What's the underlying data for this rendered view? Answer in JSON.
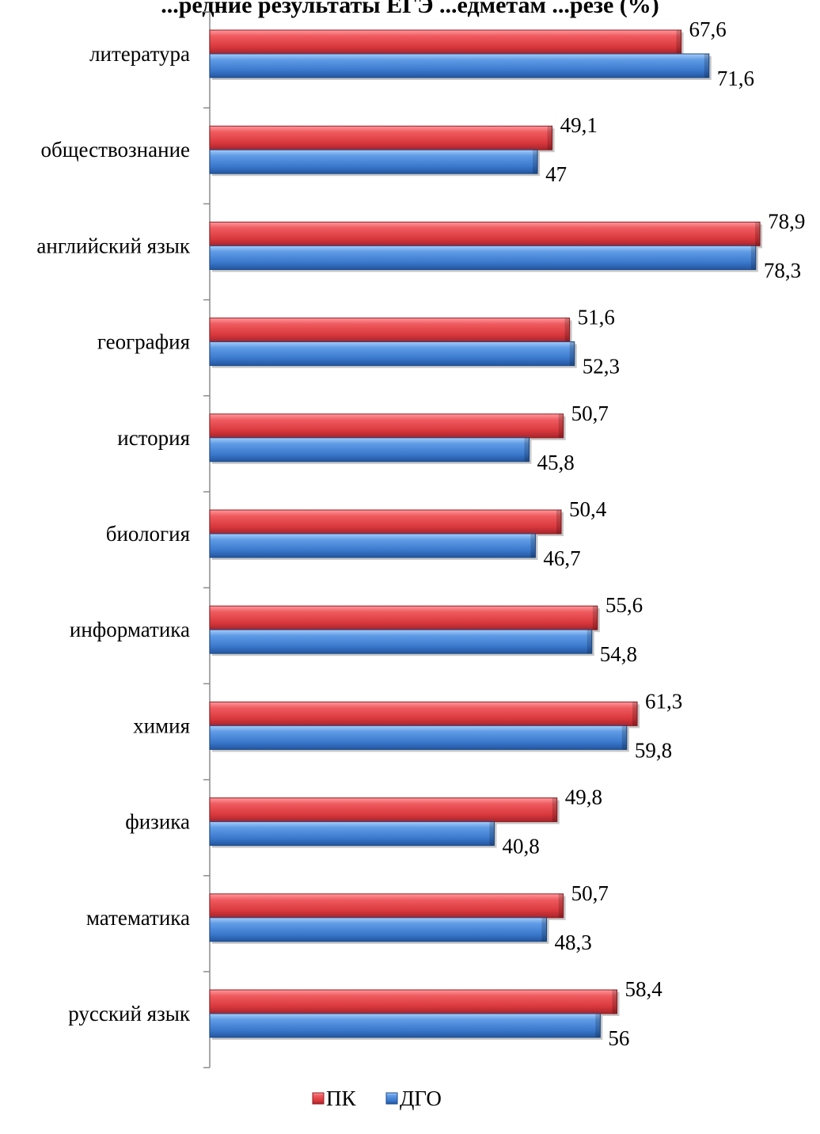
{
  "chart_data": {
    "type": "bar",
    "orientation": "horizontal",
    "title": "...редние результаты ЕГЭ ...едметам ...резе (%)",
    "categories": [
      "литература",
      "обществознание",
      "английский язык",
      "география",
      "история",
      "биология",
      "информатика",
      "химия",
      "физика",
      "математика",
      "русский язык"
    ],
    "category_labels": [
      "литература",
      "обществознание",
      "английский язык",
      "география",
      "история",
      "биология",
      "информатика",
      "химия",
      "физика",
      "математика",
      "русский язык"
    ],
    "series": [
      {
        "name": "ПК",
        "color": "#d9383d",
        "values": [
          67.6,
          49.1,
          78.9,
          51.6,
          50.7,
          50.4,
          55.6,
          61.3,
          49.8,
          50.7,
          58.4
        ],
        "labels": [
          "67,6",
          "49,1",
          "78,9",
          "51,6",
          "50,7",
          "50,4",
          "55,6",
          "61,3",
          "49,8",
          "50,7",
          "58,4"
        ]
      },
      {
        "name": "ДГО",
        "color": "#3a78cc",
        "values": [
          71.6,
          47,
          78.3,
          52.3,
          45.8,
          46.7,
          54.8,
          59.8,
          40.8,
          48.3,
          56
        ],
        "labels": [
          "71,6",
          "47",
          "78,3",
          "52,3",
          "45,8",
          "46,7",
          "54,8",
          "59,8",
          "40,8",
          "48,3",
          "56"
        ]
      }
    ],
    "xlim": [
      0,
      80
    ],
    "grid": false,
    "legend_position": "bottom"
  },
  "colors": {
    "pk": "#d9383d",
    "pk_dark": "#8f1d22",
    "pk_light": "#ff9a9e",
    "dgo": "#3a78cc",
    "dgo_dark": "#1d4a8a",
    "dgo_light": "#a9cdf6",
    "axis": "#8c8c8c"
  }
}
